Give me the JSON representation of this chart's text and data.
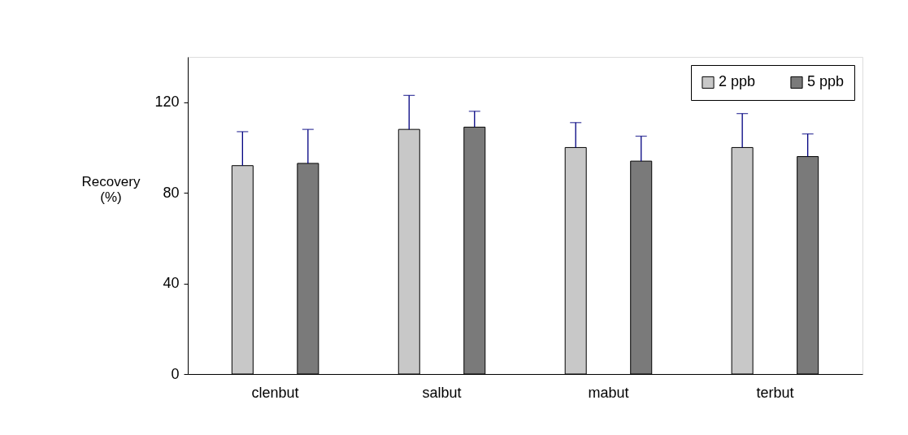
{
  "chart_data": {
    "type": "bar",
    "ylabel": "Recovery (%)",
    "categories": [
      "clenbut",
      "salbut",
      "mabut",
      "terbut"
    ],
    "series": [
      {
        "name": "2 ppb",
        "color": "#c8c8c8",
        "values": [
          92,
          108,
          100,
          100
        ],
        "errors": [
          [
            92,
            107
          ],
          [
            108,
            123
          ],
          [
            100,
            111
          ],
          [
            100,
            115
          ]
        ]
      },
      {
        "name": "5 ppb",
        "color": "#7a7a7a",
        "values": [
          93,
          109,
          94,
          96
        ],
        "errors": [
          [
            93,
            108
          ],
          [
            109,
            116
          ],
          [
            94,
            105
          ],
          [
            96,
            106
          ]
        ]
      }
    ],
    "ylim": [
      0,
      140
    ],
    "yticks": [
      0,
      40,
      80,
      120
    ],
    "grid": false,
    "legend": "top right"
  }
}
